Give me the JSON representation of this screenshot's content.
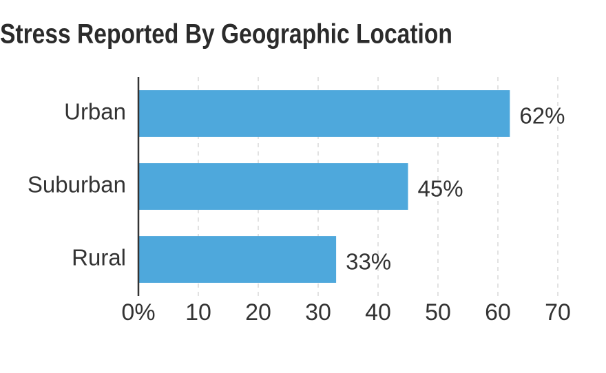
{
  "chart_data": {
    "type": "bar",
    "orientation": "horizontal",
    "title": "Stress Reported By Geographic Location",
    "categories": [
      "Urban",
      "Suburban",
      "Rural"
    ],
    "values": [
      62,
      45,
      33
    ],
    "value_labels": [
      "62%",
      "45%",
      "33%"
    ],
    "color": "#4ea8dc",
    "xlim": [
      0,
      70
    ],
    "xticks": [
      {
        "value": 0,
        "label": "0%"
      },
      10,
      20,
      30,
      40,
      50,
      60,
      70
    ],
    "grid": true
  }
}
